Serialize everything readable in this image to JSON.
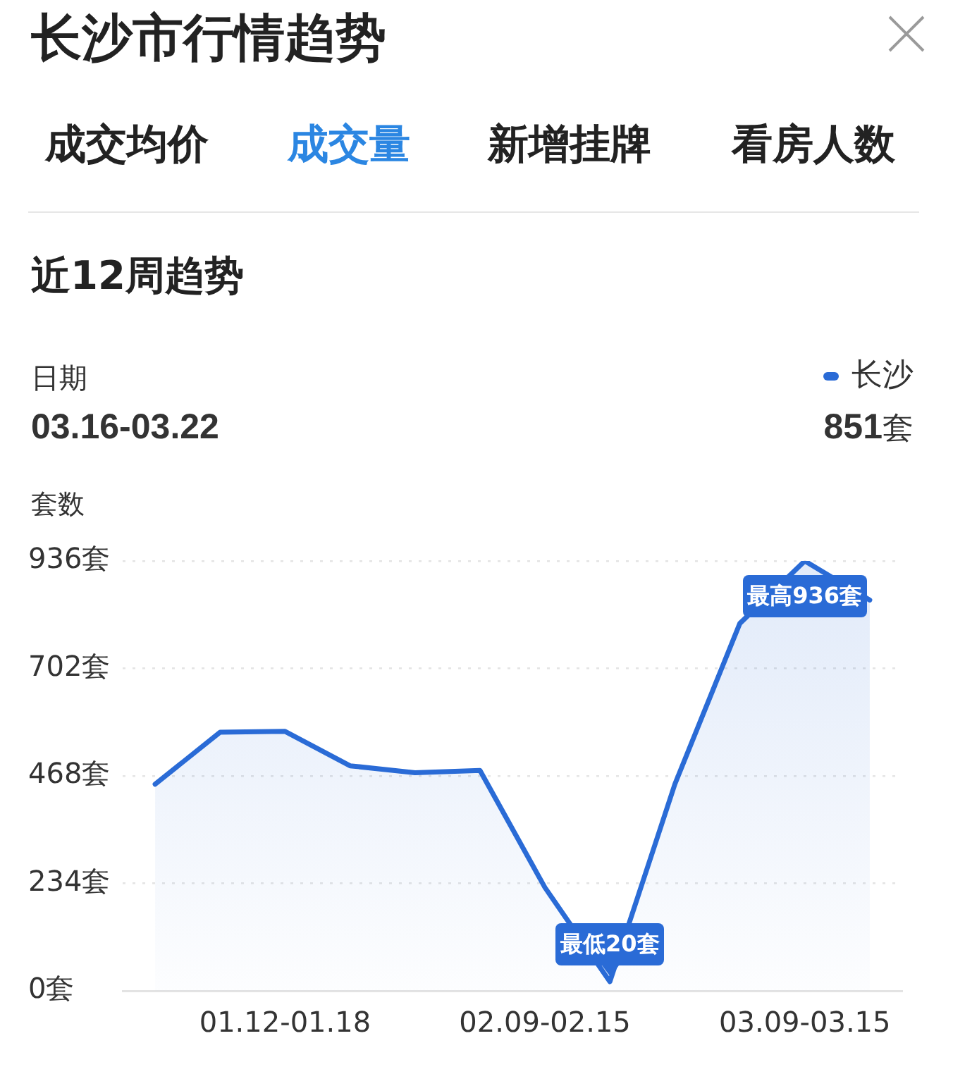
{
  "chart_data": {
    "type": "area",
    "title": "长沙市行情趋势",
    "subtitle": "近12周趋势",
    "ylabel": "套数",
    "categories": [
      null,
      null,
      "01.12-01.18",
      null,
      null,
      null,
      "02.09-02.15",
      null,
      null,
      null,
      "03.09-03.15",
      null
    ],
    "series": [
      {
        "name": "长沙",
        "color": "#2a6bd6",
        "values": [
          450,
          563,
          565,
          490,
          475,
          480,
          225,
          20,
          450,
          800,
          936,
          851
        ]
      }
    ],
    "ylim": [
      0,
      936
    ],
    "yticks": [
      {
        "value": 0,
        "label": "0套"
      },
      {
        "value": 234,
        "label": "234套"
      },
      {
        "value": 468,
        "label": "468套"
      },
      {
        "value": 702,
        "label": "702套"
      },
      {
        "value": 936,
        "label": "936套"
      }
    ],
    "grid": "y",
    "legend": "top right",
    "marker": "none",
    "annotations": [
      "成交均价",
      "成交量",
      "新增挂牌",
      "看房人数",
      "日期",
      "03.16-03.22",
      "851套",
      {
        "text": "最高936套",
        "x": "03.09-03.15",
        "y": 936
      },
      {
        "text": "最低20套",
        "y": 20
      }
    ]
  }
}
